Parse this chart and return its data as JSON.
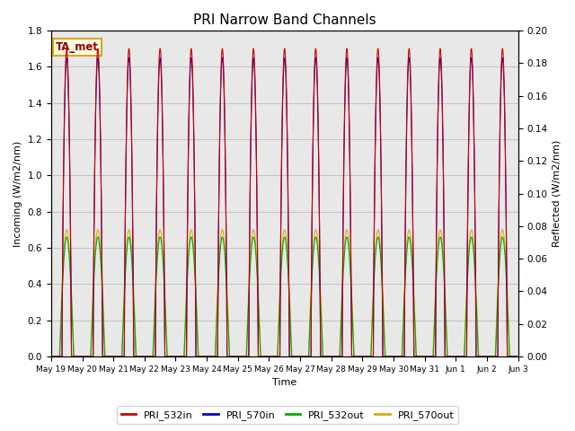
{
  "title": "PRI Narrow Band Channels",
  "xlabel": "Time",
  "ylabel_left": "Incoming (W/m2/nm)",
  "ylabel_right": "Reflected (W/m2/nm)",
  "annotation": "TA_met",
  "ylim_left": [
    0.0,
    1.8
  ],
  "ylim_right": [
    0.0,
    0.2
  ],
  "yticks_left": [
    0.0,
    0.2,
    0.4,
    0.6,
    0.8,
    1.0,
    1.2,
    1.4,
    1.6,
    1.8
  ],
  "yticks_right": [
    0.0,
    0.02,
    0.04,
    0.06,
    0.08,
    0.1,
    0.12,
    0.14,
    0.16,
    0.18,
    0.2
  ],
  "colors": {
    "PRI_532in": "#cc0000",
    "PRI_570in": "#0000cc",
    "PRI_532out": "#00aa00",
    "PRI_570out": "#ddaa00"
  },
  "legend_labels": [
    "PRI_532in",
    "PRI_570in",
    "PRI_532out",
    "PRI_570out"
  ],
  "x_tick_labels": [
    "May 19",
    "May 20",
    "May 21",
    "May 22",
    "May 23",
    "May 24",
    "May 25",
    "May 26",
    "May 27",
    "May 28",
    "May 29",
    "May 30",
    "May 31",
    "Jun 1",
    "Jun 2",
    "Jun 3"
  ],
  "num_days": 15,
  "background_color": "#e8e8e8",
  "grid_color": "#bbbbbb"
}
